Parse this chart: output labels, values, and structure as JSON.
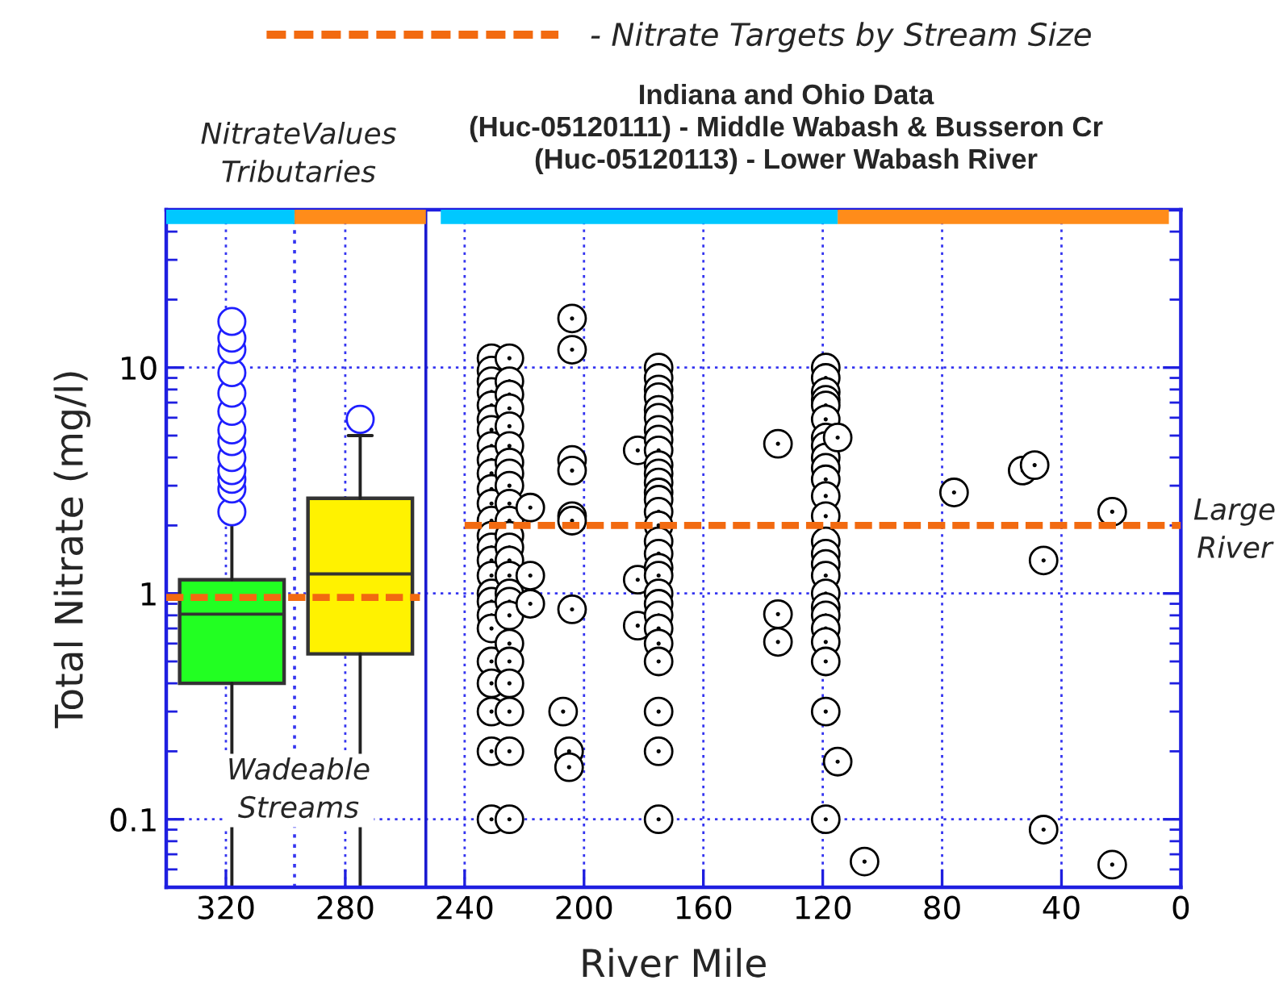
{
  "chart_data": {
    "type": "scatter",
    "title": "Indiana and Ohio Data\n(Huc-05120111) - Middle Wabash & Busseron Cr\n(Huc-05120113) - Lower Wabash River",
    "xlabel": "River Mile",
    "ylabel": "Total Nitrate (mg/l)",
    "annotations": [
      "NitrateValues\nTributaries",
      "Wadeable\nStreams",
      "Large\nRiver"
    ],
    "xlim": [
      340,
      0
    ],
    "xticks": [
      320,
      280,
      240,
      200,
      160,
      120,
      80,
      40,
      0
    ],
    "ylim": [
      0.05,
      50
    ],
    "yticks": [
      0.1,
      1,
      10
    ],
    "log": "y",
    "grid": true,
    "legend": "top",
    "ref_lines": [
      {
        "axis": "x",
        "value": 297,
        "color": "#3535f0",
        "line_style": "dotted"
      },
      {
        "axis": "x",
        "value": 253,
        "color": "#1a1ad0",
        "line_style": "solid"
      }
    ],
    "series": [
      {
        "type": "box",
        "marker": "circle",
        "x": [
          318,
          275
        ],
        "color": "#1f1fff",
        "colors": [
          "#22ff22",
          "#fff200"
        ],
        "boxes": [
          {
            "low": 0.05,
            "q1": 0.4,
            "median": 0.81,
            "q3": 1.15,
            "high": 2.2,
            "outliers": [
              2.3,
              2.9,
              3.2,
              3.5,
              4,
              4.7,
              5.3,
              6.4,
              7.7,
              9.5,
              12,
              13.5,
              16
            ]
          },
          {
            "low": 0.05,
            "q1": 0.54,
            "median": 1.22,
            "q3": 2.64,
            "high": 5,
            "outliers": [
              5.9
            ]
          }
        ]
      },
      {
        "marker": "circle",
        "color": "#000000",
        "x": [
          231,
          231,
          231,
          231,
          231,
          231,
          231,
          231,
          231,
          231,
          231,
          231,
          231,
          231,
          231,
          231,
          231,
          231,
          231,
          231,
          231,
          231,
          231,
          231,
          231,
          231,
          225,
          225,
          225,
          225,
          225,
          225,
          225,
          225,
          225,
          225,
          225,
          225,
          225,
          225,
          225,
          225,
          225,
          225,
          225,
          225,
          225,
          225,
          225,
          225,
          218,
          218,
          218,
          204,
          204,
          204,
          204,
          204,
          204,
          204,
          205,
          205,
          207,
          182,
          182,
          182,
          175,
          175,
          175,
          175,
          175,
          175,
          175,
          175,
          175,
          175,
          175,
          175,
          175,
          175,
          175,
          175,
          175,
          175,
          175,
          175,
          175,
          175,
          175,
          175,
          175,
          175,
          175,
          175,
          175,
          135,
          135,
          135,
          119,
          119,
          119,
          119,
          119,
          119,
          119,
          119,
          119,
          119,
          119,
          119,
          119,
          119,
          119,
          119,
          119,
          119,
          119,
          119,
          119,
          119,
          119,
          119,
          119,
          115,
          115,
          106,
          76,
          53,
          49,
          46,
          46,
          23,
          23
        ],
        "values": [
          11,
          9.7,
          8.7,
          7.8,
          6.8,
          5.9,
          5.3,
          4.5,
          3.9,
          3.4,
          2.9,
          2.5,
          2.1,
          1.8,
          1.6,
          1.4,
          1.2,
          1,
          0.92,
          0.8,
          0.7,
          0.5,
          0.4,
          0.3,
          0.2,
          0.1,
          11,
          8.7,
          7.6,
          6.6,
          5.5,
          4.5,
          3.8,
          3.4,
          3,
          2.5,
          2.1,
          1.8,
          1.6,
          1.4,
          1.2,
          1,
          0.92,
          0.8,
          0.6,
          0.5,
          0.4,
          0.3,
          0.2,
          0.1,
          2.4,
          1.2,
          0.9,
          16.5,
          12,
          3.9,
          3.5,
          2.2,
          2.1,
          0.85,
          0.2,
          0.17,
          0.3,
          4.3,
          1.15,
          0.72,
          10,
          9,
          8,
          7.4,
          6.5,
          6,
          5.3,
          4.8,
          4.3,
          3.7,
          3.4,
          3.1,
          2.8,
          2.6,
          2.3,
          2,
          1.7,
          1.5,
          1.3,
          1.2,
          1,
          0.9,
          0.8,
          0.7,
          0.6,
          0.5,
          0.3,
          0.2,
          0.1,
          4.6,
          0.81,
          0.61,
          10,
          9,
          7.8,
          7.2,
          6.8,
          5.9,
          4.9,
          4.5,
          4,
          3.6,
          3.2,
          2.7,
          2.2,
          1.7,
          1.5,
          1.35,
          1.2,
          1,
          0.87,
          0.8,
          0.7,
          0.61,
          0.5,
          0.3,
          0.1,
          4.9,
          0.18,
          0.065,
          2.8,
          3.5,
          3.7,
          1.4,
          0.09,
          2.3,
          0.063
        ]
      },
      {
        "type": "line",
        "name": "- Nitrate Targets by Stream Size",
        "color": "#f26a10",
        "line_style": "dashed",
        "x": [
          340,
          255
        ],
        "values": [
          0.96,
          0.96
        ]
      },
      {
        "type": "line",
        "color": "#f26a10",
        "line_style": "dashed",
        "x": [
          240,
          0
        ],
        "values": [
          2,
          2
        ]
      }
    ]
  }
}
